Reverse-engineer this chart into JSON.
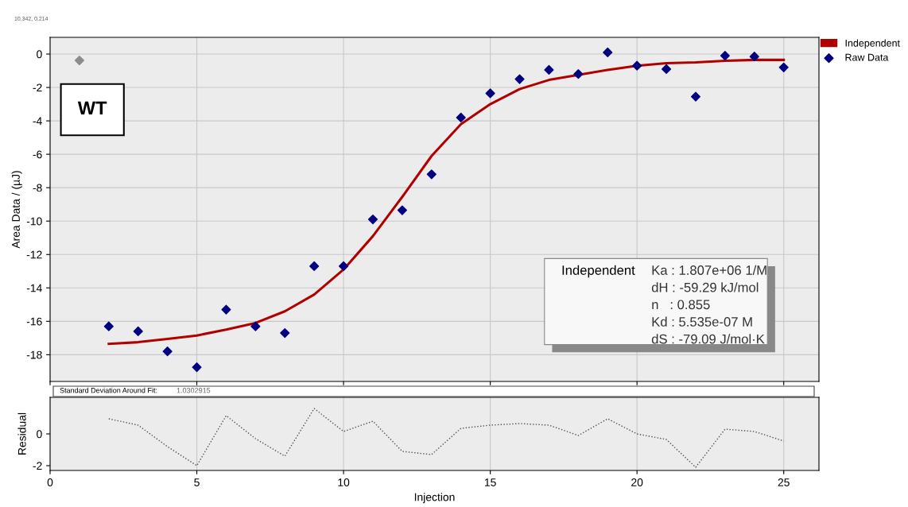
{
  "chart_data": [
    {
      "type": "line",
      "ylabel": "Area Data / (µJ)",
      "xlim": [
        0,
        26.2
      ],
      "ylim": [
        -19.6,
        1.0
      ],
      "xticks": [
        0,
        5,
        10,
        15,
        20,
        25
      ],
      "yticks": [
        0,
        -2,
        -4,
        -6,
        -8,
        -10,
        -12,
        -14,
        -16,
        -18
      ],
      "tick_labels": "y",
      "grid": true,
      "legend": "top right",
      "annotations": [
        "10.342, 0.214",
        "WT",
        "Independent",
        "Ka : 1.807e+06 1/M",
        "dH : -59.29 kJ/mol",
        "n   : 0.855",
        "Kd : 5.535e-07 M",
        "dS : -79.09 J/mol·K"
      ],
      "series": [
        {
          "name": "Independent",
          "color": "#b00000",
          "line_style": "solid",
          "x": [
            2,
            3,
            4,
            5,
            6,
            7,
            8,
            9,
            10,
            11,
            12,
            13,
            14,
            15,
            16,
            17,
            18,
            19,
            20,
            21,
            22,
            23,
            24,
            25
          ],
          "values": [
            -17.35,
            -17.25,
            -17.05,
            -16.85,
            -16.5,
            -16.1,
            -15.4,
            -14.4,
            -12.9,
            -10.9,
            -8.55,
            -6.1,
            -4.2,
            -3.0,
            -2.1,
            -1.55,
            -1.25,
            -0.95,
            -0.7,
            -0.55,
            -0.5,
            -0.4,
            -0.35,
            -0.35
          ]
        },
        {
          "name": "Raw Data",
          "type": "scatter",
          "color": "#000080",
          "marker": "diamond",
          "x": [
            2,
            3,
            4,
            5,
            6,
            7,
            8,
            9,
            10,
            11,
            12,
            13,
            14,
            15,
            16,
            17,
            18,
            19,
            20,
            21,
            22,
            23,
            24,
            25
          ],
          "values": [
            -16.3,
            -16.6,
            -17.8,
            -18.75,
            -15.3,
            -16.3,
            -16.7,
            -12.7,
            -12.7,
            -9.9,
            -9.35,
            -7.2,
            -3.8,
            -2.35,
            -1.5,
            -0.95,
            -1.2,
            0.1,
            -0.7,
            -0.9,
            -2.55,
            -0.1,
            -0.15,
            -0.8
          ]
        },
        {
          "type": "scatter",
          "color": "#8c8c8c",
          "marker": "diamond",
          "x": [
            1
          ],
          "values": [
            -0.38
          ]
        }
      ]
    },
    {
      "type": "line",
      "xlabel": "Injection",
      "ylabel": "Residual",
      "xlim": [
        0,
        26.2
      ],
      "ylim": [
        -2.3,
        2.3
      ],
      "xticks": [
        0,
        5,
        10,
        15,
        20,
        25
      ],
      "yticks": [
        0,
        -2
      ],
      "grid": "x",
      "annotations": [
        "Standard Deviation Around Fit:",
        "1.0302915"
      ],
      "series": [
        {
          "color": "#505050",
          "line_style": "dotted",
          "x": [
            2,
            3,
            4,
            5,
            6,
            7,
            8,
            9,
            10,
            11,
            12,
            13,
            14,
            15,
            16,
            17,
            18,
            19,
            20,
            21,
            22,
            23,
            24,
            25
          ],
          "values": [
            0.95,
            0.55,
            -0.8,
            -2.0,
            1.15,
            -0.3,
            -1.4,
            1.6,
            0.15,
            0.8,
            -1.1,
            -1.3,
            0.35,
            0.55,
            0.65,
            0.55,
            -0.1,
            0.95,
            0.0,
            -0.35,
            -2.1,
            0.3,
            0.15,
            -0.45
          ]
        }
      ]
    }
  ]
}
